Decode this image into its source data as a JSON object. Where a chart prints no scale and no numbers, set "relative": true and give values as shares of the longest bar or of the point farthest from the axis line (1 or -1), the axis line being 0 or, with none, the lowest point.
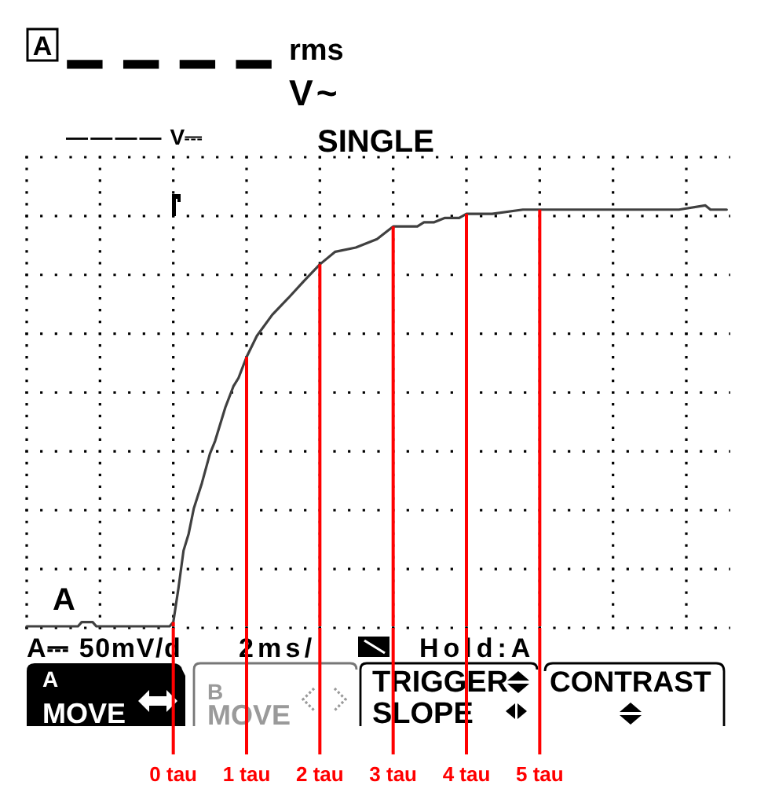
{
  "chart_data": {
    "type": "line",
    "relative": true,
    "x": [
      -2,
      -1.3,
      -1.25,
      -1.1,
      -1.05,
      -0.05,
      0,
      0.07,
      0.14,
      0.21,
      0.28,
      0.39,
      0.5,
      0.57,
      0.71,
      0.82,
      0.89,
      1.0,
      1.14,
      1.35,
      1.57,
      1.78,
      2.0,
      2.21,
      2.49,
      2.78,
      3.0,
      3.33,
      3.42,
      3.56,
      3.7,
      3.9,
      4.0,
      4.2,
      4.35,
      4.77,
      5.0,
      5.2,
      5.5,
      5.84,
      6.2,
      6.55,
      6.9,
      7.26,
      7.33,
      7.55
    ],
    "series": [
      {
        "color": "#404040",
        "values": [
          0,
          0,
          0.01,
          0.01,
          0,
          0,
          0.01,
          0.09,
          0.18,
          0.22,
          0.28,
          0.34,
          0.41,
          0.44,
          0.52,
          0.57,
          0.59,
          0.64,
          0.69,
          0.74,
          0.78,
          0.82,
          0.86,
          0.89,
          0.9,
          0.92,
          0.95,
          0.95,
          0.96,
          0.96,
          0.97,
          0.97,
          0.98,
          0.98,
          0.98,
          0.99,
          0.99,
          0.99,
          0.99,
          0.99,
          0.99,
          0.99,
          0.99,
          1,
          0.99,
          0.99
        ]
      },
      {
        "type": "bar",
        "color": "#ff0000",
        "x": [
          0,
          1,
          2,
          3,
          4,
          5
        ],
        "values": [
          0.01,
          0.64,
          0.86,
          0.95,
          0.98,
          0.99
        ]
      }
    ],
    "xlim": [
      -2,
      7.6
    ],
    "xticks": [
      {
        "value": -2,
        "label": null
      },
      {
        "value": -1,
        "label": null
      },
      {
        "value": 0,
        "label": "0 tau"
      },
      {
        "value": 1,
        "label": "1 tau"
      },
      {
        "value": 2,
        "label": "2 tau"
      },
      {
        "value": 3,
        "label": "3 tau"
      },
      {
        "value": 4,
        "label": "4 tau"
      },
      {
        "value": 5,
        "label": "5 tau"
      },
      {
        "value": 6,
        "label": null
      },
      {
        "value": 7,
        "label": null
      }
    ],
    "tick_labels": "x",
    "grid": true,
    "annotations": [
      "A",
      "– – – –",
      "rms",
      "V~",
      "———— V⎓",
      "SINGLE",
      "A",
      "A⎓ 50mV/d",
      "2ms/",
      "Hold:A",
      "A",
      "MOVE",
      "B",
      "MOVE",
      "TRIGGER",
      "SLOPE",
      "CONTRAST"
    ]
  }
}
